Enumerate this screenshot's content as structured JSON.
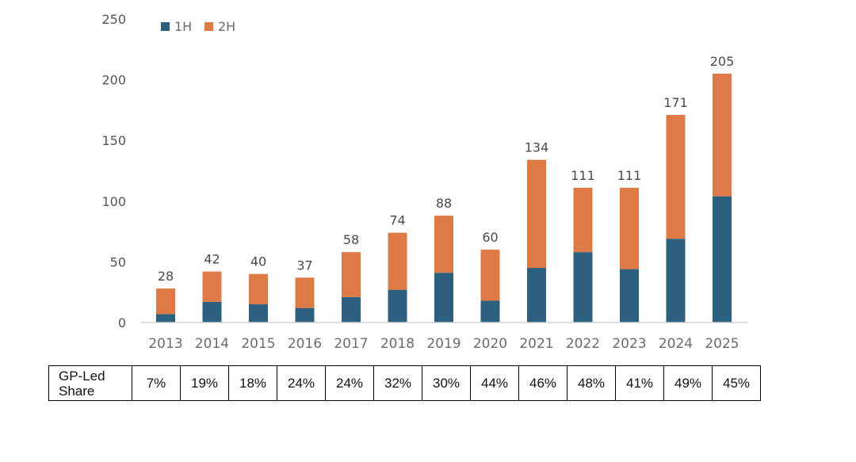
{
  "chart_data": {
    "type": "bar",
    "stacked": true,
    "categories": [
      "2013",
      "2014",
      "2015",
      "2016",
      "2017",
      "2018",
      "2019",
      "2020",
      "2021",
      "2022",
      "2023",
      "2024",
      "2025"
    ],
    "series": [
      {
        "name": "1H",
        "color": "#2d5f7f",
        "values": [
          7,
          17,
          15,
          12,
          21,
          27,
          41,
          18,
          45,
          58,
          44,
          69,
          104
        ]
      },
      {
        "name": "2H",
        "color": "#dd7a45",
        "values": [
          21,
          25,
          25,
          25,
          37,
          47,
          47,
          42,
          89,
          53,
          67,
          102,
          101
        ]
      }
    ],
    "totals": [
      "28",
      "42",
      "40",
      "37",
      "58",
      "74",
      "88",
      "60",
      "134",
      "111",
      "111",
      "171",
      "205"
    ],
    "yticks": [
      "0",
      "50",
      "100",
      "150",
      "200",
      "250"
    ],
    "ylim": [
      0,
      250
    ],
    "grid": false,
    "legend_position": "top-left",
    "title": "",
    "xlabel": "",
    "ylabel": ""
  },
  "table": {
    "row_label": "GP-Led Share",
    "values": [
      "7%",
      "19%",
      "18%",
      "24%",
      "24%",
      "32%",
      "30%",
      "44%",
      "46%",
      "48%",
      "41%",
      "49%",
      "45%"
    ]
  }
}
